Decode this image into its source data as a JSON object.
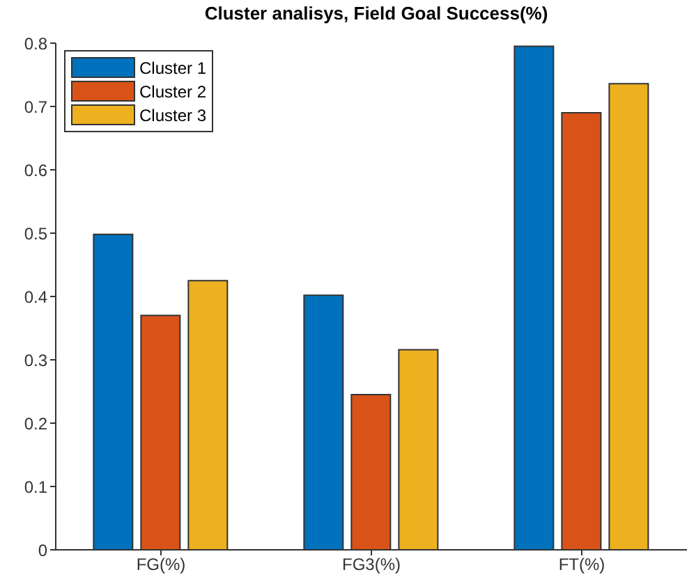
{
  "chart_data": {
    "type": "bar",
    "title": "Cluster analisys, Field Goal Success(%)",
    "categories": [
      "FG(%)",
      "FG3(%)",
      "FT(%)"
    ],
    "series": [
      {
        "name": "Cluster 1",
        "color": "#0072bd",
        "values": [
          0.498,
          0.402,
          0.795
        ]
      },
      {
        "name": "Cluster 2",
        "color": "#d95319",
        "values": [
          0.37,
          0.245,
          0.69
        ]
      },
      {
        "name": "Cluster 3",
        "color": "#edb120",
        "values": [
          0.425,
          0.316,
          0.736
        ]
      }
    ],
    "ylim": [
      0,
      0.8
    ],
    "yticks": [
      0,
      0.1,
      0.2,
      0.3,
      0.4,
      0.5,
      0.6,
      0.7,
      0.8
    ],
    "grid": false,
    "legend": "top left"
  }
}
